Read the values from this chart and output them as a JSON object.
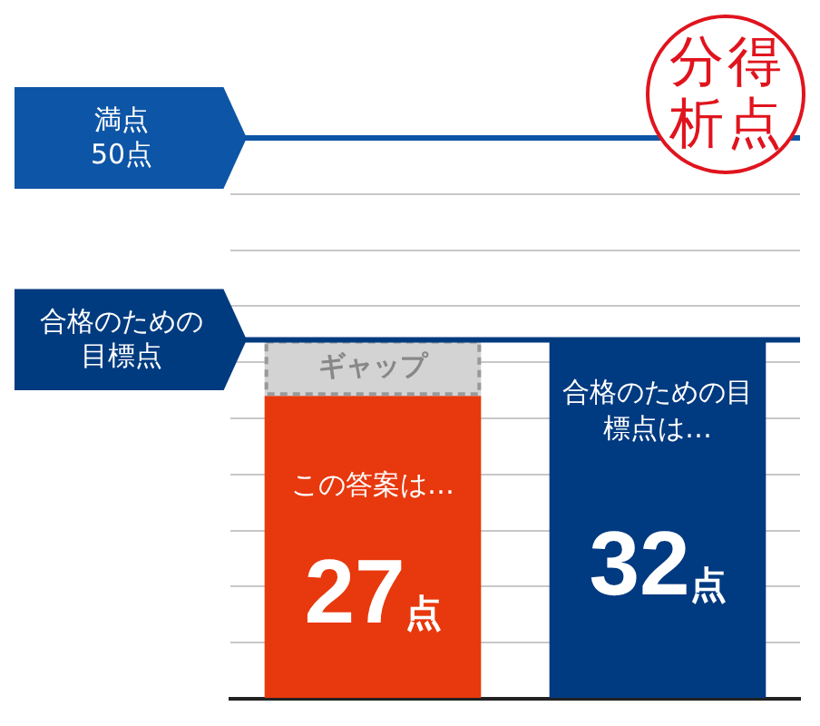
{
  "chart_data": {
    "type": "bar",
    "stacked": true,
    "categories": [
      "この答案は…",
      "合格のための目標点は…"
    ],
    "series": [
      {
        "colors": [
          "#e8380d",
          "#003a80"
        ],
        "values": [
          27,
          32
        ],
        "value_labels": [
          "27点",
          "32点"
        ]
      },
      {
        "color": "#d3d3d3",
        "values": [
          5,
          null
        ],
        "value_labels": [
          "ギャップ",
          null
        ],
        "line_style": "dashed"
      }
    ],
    "ylim": [
      0,
      50
    ],
    "yticks": [
      {
        "value": 0,
        "label": null
      },
      {
        "value": 5,
        "label": null
      },
      {
        "value": 10,
        "label": null
      },
      {
        "value": 15,
        "label": null
      },
      {
        "value": 20,
        "label": null
      },
      {
        "value": 25,
        "label": null
      },
      {
        "value": 30,
        "label": null
      },
      {
        "value": 35,
        "label": null
      },
      {
        "value": 40,
        "label": null
      },
      {
        "value": 45,
        "label": null
      },
      {
        "value": 50,
        "label": null
      }
    ],
    "grid": "y",
    "ref_lines": [
      {
        "axis": "y",
        "value": 50,
        "label": "満点\n50点",
        "color": "#0d55a6"
      },
      {
        "axis": "y",
        "value": 32,
        "label": "合格のための目標点",
        "color": "#003b7f"
      }
    ],
    "annotations": [
      "得点分析"
    ]
  }
}
